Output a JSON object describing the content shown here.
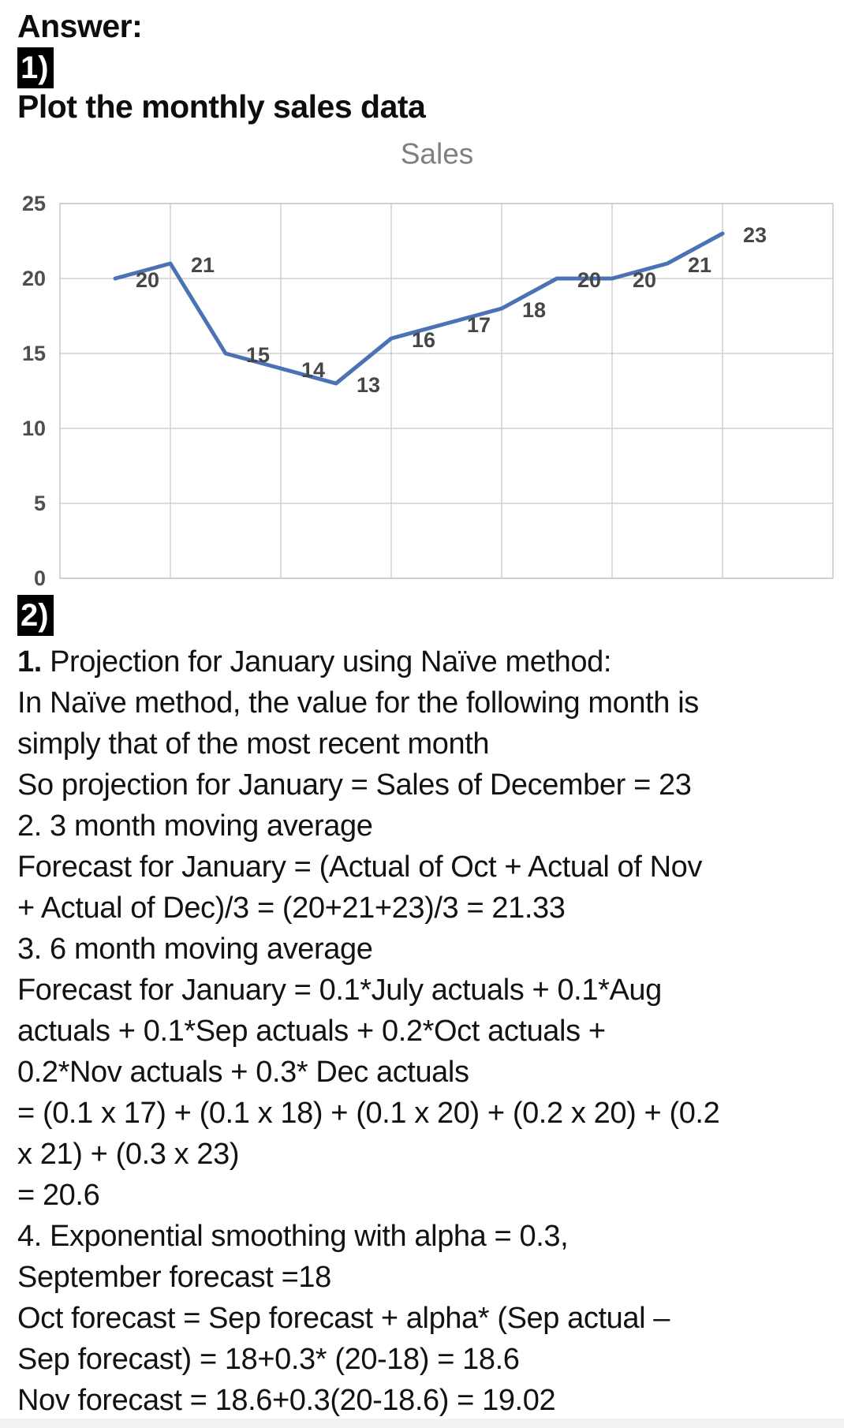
{
  "page": {
    "answer_label": "Answer:",
    "section1_badge": "1)",
    "section1_heading": "Plot the monthly sales data",
    "section2_badge": "2)"
  },
  "chart_data": {
    "type": "line",
    "title": "Sales",
    "values": [
      20,
      21,
      15,
      14,
      13,
      16,
      17,
      18,
      20,
      20,
      21,
      23
    ],
    "data_labels": [
      "20",
      "21",
      "15",
      "14",
      "13",
      "16",
      "17",
      "18",
      "20",
      "20",
      "21",
      "23"
    ],
    "y_ticks": [
      25,
      20,
      15,
      10,
      5,
      0
    ],
    "ylim": [
      0,
      25
    ],
    "grid": "on",
    "legend": "none",
    "line_color": "#4a72b4",
    "label_color": "#474747",
    "tick_color": "#4f4f4f",
    "title_color": "#7f7f7f",
    "grid_color": "#d0d0d0",
    "border_color": "#c9c9c9"
  },
  "solution": {
    "lines": [
      {
        "b": "1.",
        "t": " Projection for January using Naïve method:"
      },
      {
        "b": "",
        "t": "In Naïve method, the value for the following month is"
      },
      {
        "b": "",
        "t": "simply that of the most recent month"
      },
      {
        "b": "",
        "t": "So projection for January = Sales of December = 23"
      },
      {
        "b": "",
        "t": "2. 3 month moving average"
      },
      {
        "b": "",
        "t": "Forecast for January = (Actual of Oct + Actual of Nov"
      },
      {
        "b": "",
        "t": "+ Actual of Dec)/3 = (20+21+23)/3 = 21.33"
      },
      {
        "b": "",
        "t": "3. 6 month moving average"
      },
      {
        "b": "",
        "t": "Forecast for January = 0.1*July actuals + 0.1*Aug"
      },
      {
        "b": "",
        "t": "actuals + 0.1*Sep actuals + 0.2*Oct actuals +"
      },
      {
        "b": "",
        "t": "0.2*Nov actuals + 0.3* Dec actuals"
      },
      {
        "b": "",
        "t": "= (0.1 x 17) + (0.1 x 18) + (0.1 x 20) + (0.2 x 20) + (0.2"
      },
      {
        "b": "",
        "t": "x 21) + (0.3 x 23)"
      },
      {
        "b": "",
        "t": "= 20.6"
      },
      {
        "b": "",
        "t": "4. Exponential smoothing with alpha = 0.3,"
      },
      {
        "b": "",
        "t": "September forecast =18"
      },
      {
        "b": "",
        "t": "Oct forecast = Sep forecast + alpha* (Sep actual –"
      },
      {
        "b": "",
        "t": "Sep forecast) = 18+0.3* (20-18) = 18.6"
      },
      {
        "b": "",
        "t": "Nov forecast = 18.6+0.3(20-18.6) = 19.02"
      }
    ]
  }
}
